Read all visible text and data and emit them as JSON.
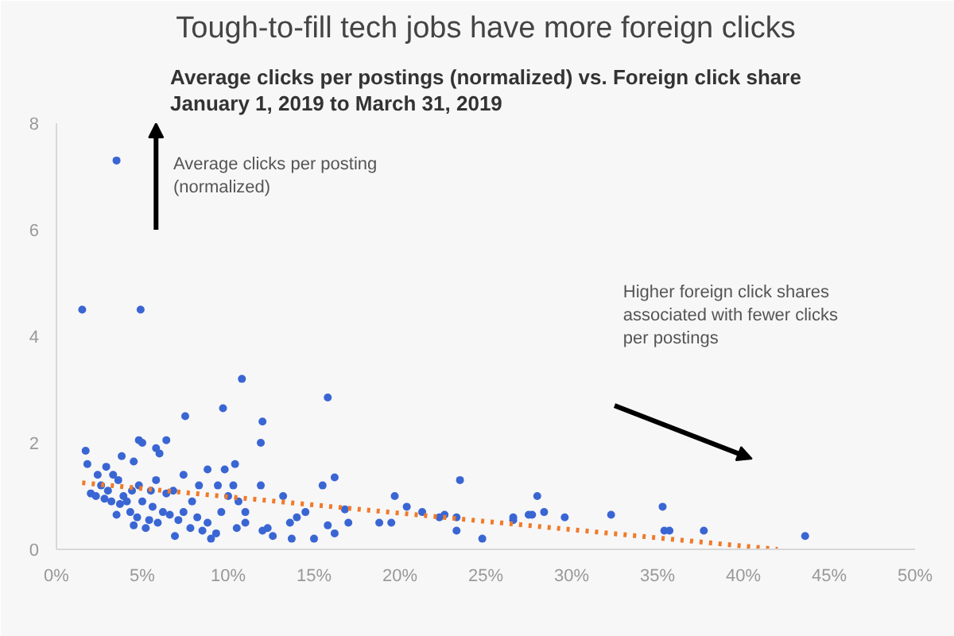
{
  "chart_data": {
    "type": "scatter",
    "title": "Tough-to-fill tech jobs have more foreign clicks",
    "subtitle": "Average clicks per postings (normalized) vs. Foreign click share\nJanuary 1, 2019 to March 31, 2019",
    "annotations": [
      "Average clicks per posting\n(normalized)",
      "Higher foreign click shares\nassociated with fewer clicks\nper postings"
    ],
    "xlim": [
      0,
      50
    ],
    "ylim": [
      0,
      8
    ],
    "xticks": [
      {
        "value": 0,
        "label": "0%"
      },
      {
        "value": 5,
        "label": "5%"
      },
      {
        "value": 10,
        "label": "10%"
      },
      {
        "value": 15,
        "label": "15%"
      },
      {
        "value": 20,
        "label": "20%"
      },
      {
        "value": 25,
        "label": "25%"
      },
      {
        "value": 30,
        "label": "30%"
      },
      {
        "value": 35,
        "label": "35%"
      },
      {
        "value": 40,
        "label": "40%"
      },
      {
        "value": 45,
        "label": "45%"
      },
      {
        "value": 50,
        "label": "50%"
      }
    ],
    "yticks": [
      0,
      2,
      4,
      6,
      8
    ],
    "grid": false,
    "marker": "circle",
    "series": [
      {
        "color": "#3a66d4",
        "x": [
          3.5,
          1.5,
          4.9,
          10.8,
          15.8,
          9.7,
          7.5,
          12,
          11.9,
          6.4,
          5,
          4.8,
          5.8,
          6.0,
          1.7,
          1.8,
          4.5,
          3.8,
          2.9,
          3.3,
          2.4,
          3.6,
          7.4,
          8.8,
          10.4,
          9.8,
          10.3,
          11.9,
          13.2,
          15.5,
          16.2,
          16.8,
          17,
          19.7,
          20.4,
          21.3,
          22.3,
          22.6,
          23.3,
          23.5,
          23.3,
          24.8,
          26.6,
          26.6,
          27.7,
          28,
          27.5,
          28.4,
          29.6,
          32.3,
          35.3,
          35.4,
          35.7,
          37.7,
          43.6,
          18.8,
          19.5,
          14.5,
          15.8,
          16.2,
          15,
          14,
          13.6,
          13.7,
          12.6,
          12.3,
          12,
          11,
          10.5,
          10.6,
          11,
          9.3,
          9,
          8.8,
          8.5,
          8.2,
          7.8,
          7.4,
          7.1,
          6.9,
          6.6,
          6.4,
          6.2,
          5.9,
          5.6,
          5.4,
          5.2,
          5.0,
          4.7,
          4.5,
          4.3,
          4.1,
          3.9,
          3.7,
          3.5,
          3.2,
          3.0,
          2.8,
          2.6,
          2.3,
          2.0,
          4.8,
          5.5,
          6.8,
          7.9,
          9.6,
          10,
          8.3,
          9.4,
          4.4,
          5.8
        ],
        "values": [
          7.3,
          4.5,
          4.5,
          3.2,
          2.85,
          2.65,
          2.5,
          2.4,
          2.0,
          2.05,
          2.0,
          2.05,
          1.9,
          1.8,
          1.85,
          1.6,
          1.65,
          1.75,
          1.55,
          1.4,
          1.4,
          1.3,
          1.4,
          1.5,
          1.6,
          1.5,
          1.2,
          1.2,
          1.0,
          1.2,
          1.35,
          0.75,
          0.5,
          1.0,
          0.8,
          0.7,
          0.6,
          0.65,
          0.6,
          1.3,
          0.35,
          0.2,
          0.55,
          0.6,
          0.65,
          1.0,
          0.65,
          0.7,
          0.6,
          0.65,
          0.8,
          0.35,
          0.35,
          0.35,
          0.25,
          0.5,
          0.5,
          0.7,
          0.45,
          0.3,
          0.2,
          0.6,
          0.5,
          0.2,
          0.25,
          0.4,
          0.35,
          0.5,
          0.4,
          0.9,
          0.7,
          0.3,
          0.2,
          0.5,
          0.35,
          0.6,
          0.4,
          0.7,
          0.55,
          0.25,
          0.65,
          1.05,
          0.7,
          0.5,
          0.8,
          0.55,
          0.4,
          0.9,
          0.6,
          0.45,
          0.7,
          0.9,
          1.0,
          0.85,
          0.65,
          0.9,
          1.1,
          0.95,
          1.2,
          1.0,
          1.05,
          1.2,
          1.1,
          1.1,
          0.9,
          0.7,
          1.0,
          1.2,
          1.2,
          1.1,
          1.3
        ]
      },
      {
        "type": "line",
        "color": "#f07a2a",
        "line_style": "dotted",
        "marker": "none",
        "x": [
          1.5,
          42
        ],
        "values": [
          1.25,
          0
        ]
      }
    ]
  }
}
